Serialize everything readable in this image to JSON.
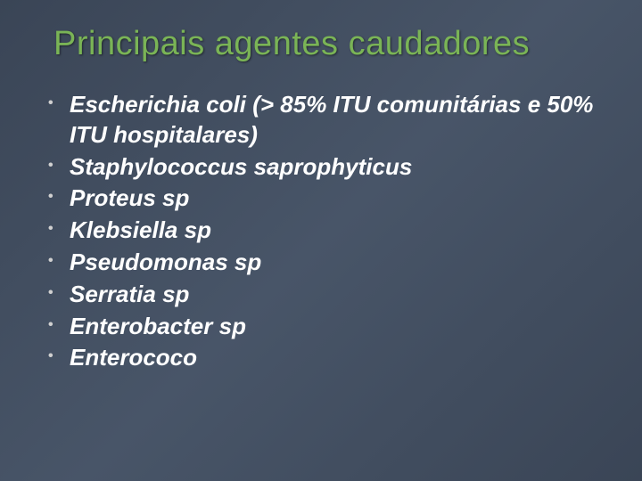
{
  "slide": {
    "title": "Principais agentes caudadores",
    "background_gradient": [
      "#3a4556",
      "#485568",
      "#3a4556"
    ],
    "title_color": "#7ab456",
    "title_fontsize": 38,
    "text_color": "#ffffff",
    "text_fontsize": 26,
    "text_fontstyle": "italic",
    "bullet_color": "#d0d0d0",
    "items": [
      "Escherichia coli (> 85% ITU comunitárias e 50% ITU hospitalares)",
      "Staphylococcus saprophyticus",
      "Proteus sp",
      " Klebsiella sp",
      "Pseudomonas sp",
      "Serratia sp",
      "Enterobacter sp",
      "Enterococo"
    ]
  }
}
